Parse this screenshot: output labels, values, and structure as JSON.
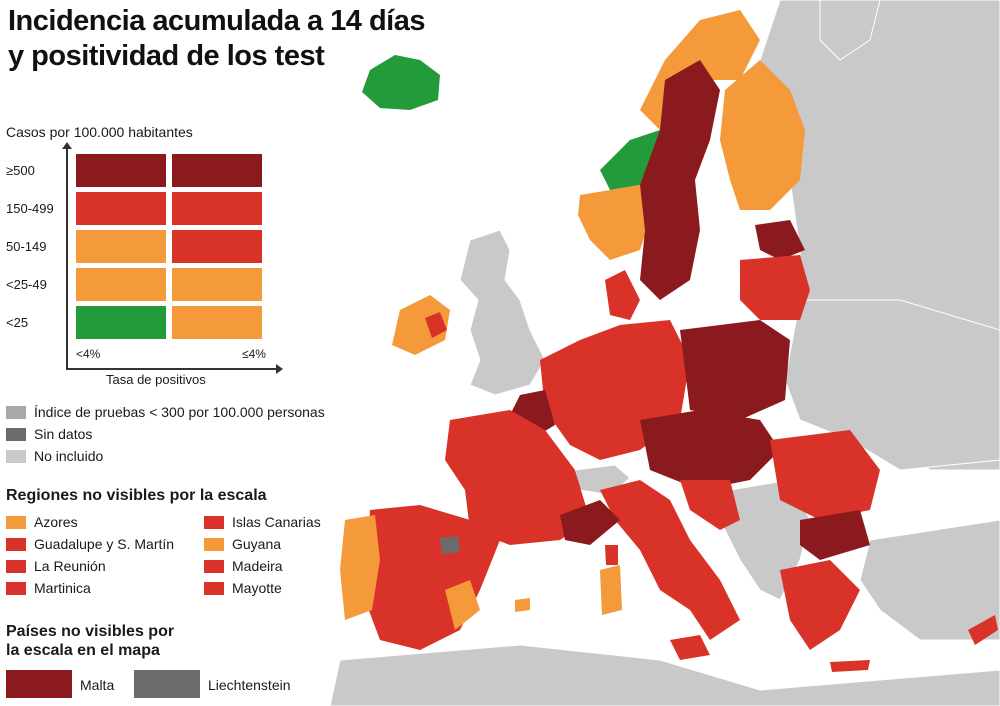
{
  "title": {
    "line1": "Incidencia acumulada a 14 días",
    "line2": "y positividad de los test"
  },
  "colors": {
    "dark_red": "#8b1a1f",
    "red": "#d93229",
    "orange": "#f49a3b",
    "green": "#239b3a",
    "grey_light": "#c9c9c9",
    "grey_mid": "#a8a8a8",
    "grey_dark": "#6b6b6b",
    "water": "#ffffff"
  },
  "scale": {
    "title": "Casos por 100.000 habitantes",
    "rows": [
      {
        "label": "≥500",
        "left": "dark_red",
        "right": "dark_red"
      },
      {
        "label": "150-499",
        "left": "red",
        "right": "red"
      },
      {
        "label": "50-149",
        "left": "orange",
        "right": "red"
      },
      {
        "label": "<25-49",
        "left": "orange",
        "right": "orange"
      },
      {
        "label": "<25",
        "left": "green",
        "right": "orange"
      }
    ],
    "x_left": "<4%",
    "x_right": "≤4%",
    "x_title": "Tasa de positivos"
  },
  "legend": [
    {
      "label": "Índice de pruebas < 300 por 100.000 personas",
      "color": "grey_mid"
    },
    {
      "label": "Sin datos",
      "color": "grey_dark"
    },
    {
      "label": "No incluido",
      "color": "grey_light"
    }
  ],
  "regions": {
    "title": "Regiones no visibles por la escala",
    "items": [
      {
        "label": "Azores",
        "color": "orange"
      },
      {
        "label": "Guadalupe y S. Martín",
        "color": "red"
      },
      {
        "label": "La Reunión",
        "color": "red"
      },
      {
        "label": "Martinica",
        "color": "red"
      },
      {
        "label": "Islas Canarias",
        "color": "red"
      },
      {
        "label": "Guyana",
        "color": "orange"
      },
      {
        "label": "Madeira",
        "color": "red"
      },
      {
        "label": "Mayotte",
        "color": "red"
      }
    ]
  },
  "countries": {
    "title_line1": "Países no visibles por",
    "title_line2": "la escala en el mapa",
    "items": [
      {
        "label": "Malta",
        "color": "dark_red"
      },
      {
        "label": "Liechtenstein",
        "color": "grey_dark"
      }
    ]
  }
}
